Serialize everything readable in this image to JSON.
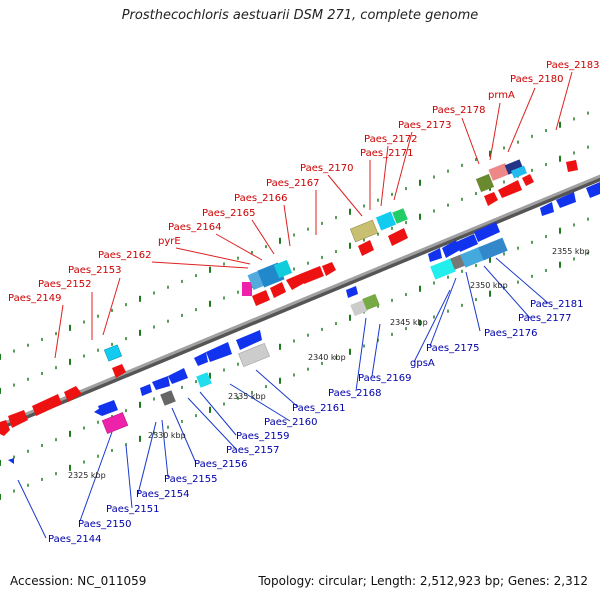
{
  "title": "Prosthecochloris aestuarii DSM 271, complete genome",
  "accession": "Accession: NC_011059",
  "summary": "Topology: circular; Length: 2,512,923 bp; Genes: 2,312",
  "colors": {
    "backbone": "#8c8c8c",
    "upper_label": "#cc0000",
    "lower_label": "#0000aa",
    "tick": "#1f7a1f",
    "leader_upper": "#dd2222",
    "leader_lower": "#1a3acc"
  },
  "upper_labels": [
    "Paes_2149",
    "Paes_2152",
    "Paes_2153",
    "Paes_2162",
    "pyrE",
    "Paes_2164",
    "Paes_2165",
    "Paes_2166",
    "Paes_2167",
    "Paes_2170",
    "Paes_2171",
    "Paes_2172",
    "Paes_2173",
    "Paes_2178",
    "prmA",
    "Paes_2180",
    "Paes_2183"
  ],
  "lower_labels": [
    "Paes_2144",
    "Paes_2150",
    "Paes_2151",
    "Paes_2154",
    "Paes_2155",
    "Paes_2156",
    "Paes_2157",
    "Paes_2159",
    "Paes_2160",
    "Paes_2161",
    "Paes_2168",
    "Paes_2169",
    "gpsA",
    "Paes_2175",
    "Paes_2176",
    "Paes_2177",
    "Paes_2181"
  ],
  "kbp_labels": [
    "2325 kbp",
    "2330 kbp",
    "2335 kbp",
    "2340 kbp",
    "2345 kbp",
    "2350 kbp",
    "2355 kbp"
  ]
}
